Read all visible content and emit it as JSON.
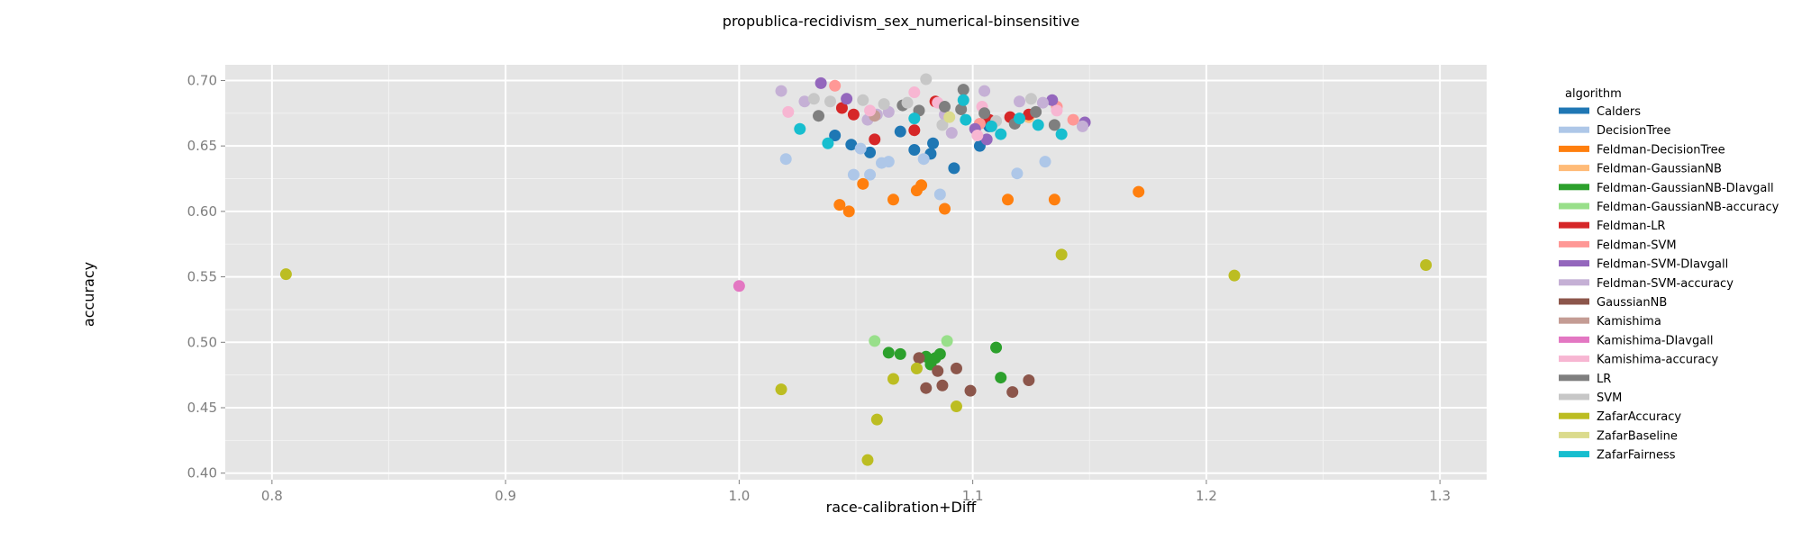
{
  "chart_data": {
    "type": "scatter",
    "title": "propublica-recidivism_sex_numerical-binsensitive",
    "xlabel": "race-calibration+Diff",
    "ylabel": "accuracy",
    "xlim": [
      0.78,
      1.32
    ],
    "ylim": [
      0.395,
      0.712
    ],
    "xticks": [
      0.8,
      0.9,
      1.0,
      1.1,
      1.2,
      1.3
    ],
    "xtick_labels": [
      "0.8",
      "0.9",
      "1.0",
      "1.1",
      "1.2",
      "1.3"
    ],
    "yticks": [
      0.4,
      0.45,
      0.5,
      0.55,
      0.6,
      0.65,
      0.7
    ],
    "ytick_labels": [
      "0.40",
      "0.45",
      "0.50",
      "0.55",
      "0.60",
      "0.65",
      "0.70"
    ],
    "grid": true,
    "background": "#e5e5e5",
    "legend_title": "algorithm",
    "legend_position": "right",
    "series": [
      {
        "name": "Calders",
        "color": "#1f77b4",
        "points": [
          [
            1.041,
            0.658
          ],
          [
            1.048,
            0.651
          ],
          [
            1.056,
            0.645
          ],
          [
            1.069,
            0.661
          ],
          [
            1.075,
            0.647
          ],
          [
            1.082,
            0.644
          ],
          [
            1.083,
            0.652
          ],
          [
            1.092,
            0.633
          ],
          [
            1.103,
            0.65
          ],
          [
            1.107,
            0.665
          ]
        ]
      },
      {
        "name": "DecisionTree",
        "color": "#aec7e8",
        "points": [
          [
            1.02,
            0.64
          ],
          [
            1.049,
            0.628
          ],
          [
            1.052,
            0.648
          ],
          [
            1.056,
            0.628
          ],
          [
            1.061,
            0.637
          ],
          [
            1.064,
            0.638
          ],
          [
            1.079,
            0.64
          ],
          [
            1.086,
            0.613
          ],
          [
            1.119,
            0.629
          ],
          [
            1.131,
            0.638
          ]
        ]
      },
      {
        "name": "Feldman-DecisionTree",
        "color": "#ff7f0e",
        "points": [
          [
            1.043,
            0.605
          ],
          [
            1.047,
            0.6
          ],
          [
            1.053,
            0.621
          ],
          [
            1.066,
            0.609
          ],
          [
            1.076,
            0.616
          ],
          [
            1.078,
            0.62
          ],
          [
            1.088,
            0.602
          ],
          [
            1.115,
            0.609
          ],
          [
            1.135,
            0.609
          ],
          [
            1.171,
            0.615
          ]
        ]
      },
      {
        "name": "Feldman-GaussianNB",
        "color": "#ffbb78",
        "points": [
          [
            1.124,
            0.672
          ]
        ]
      },
      {
        "name": "Feldman-GaussianNB-DIavgall",
        "color": "#2ca02c",
        "points": [
          [
            1.064,
            0.492
          ],
          [
            1.069,
            0.491
          ],
          [
            1.08,
            0.489
          ],
          [
            1.082,
            0.483
          ],
          [
            1.084,
            0.488
          ],
          [
            1.086,
            0.491
          ],
          [
            1.11,
            0.496
          ],
          [
            1.112,
            0.473
          ]
        ]
      },
      {
        "name": "Feldman-GaussianNB-accuracy",
        "color": "#98df8a",
        "points": [
          [
            1.058,
            0.501
          ],
          [
            1.076,
            0.48
          ],
          [
            1.089,
            0.501
          ]
        ]
      },
      {
        "name": "Feldman-LR",
        "color": "#d62728",
        "points": [
          [
            1.044,
            0.679
          ],
          [
            1.049,
            0.674
          ],
          [
            1.058,
            0.655
          ],
          [
            1.075,
            0.662
          ],
          [
            1.084,
            0.684
          ],
          [
            1.107,
            0.67
          ],
          [
            1.116,
            0.672
          ],
          [
            1.124,
            0.674
          ]
        ]
      },
      {
        "name": "Feldman-SVM",
        "color": "#ff9896",
        "points": [
          [
            1.041,
            0.696
          ],
          [
            1.103,
            0.667
          ],
          [
            1.136,
            0.68
          ],
          [
            1.143,
            0.67
          ]
        ]
      },
      {
        "name": "Feldman-SVM-DIavgall",
        "color": "#9467bd",
        "points": [
          [
            1.035,
            0.698
          ],
          [
            1.046,
            0.686
          ],
          [
            1.101,
            0.663
          ],
          [
            1.106,
            0.655
          ],
          [
            1.134,
            0.685
          ],
          [
            1.148,
            0.668
          ]
        ]
      },
      {
        "name": "Feldman-SVM-accuracy",
        "color": "#c5b0d5",
        "points": [
          [
            1.018,
            0.692
          ],
          [
            1.028,
            0.684
          ],
          [
            1.055,
            0.67
          ],
          [
            1.059,
            0.674
          ],
          [
            1.064,
            0.676
          ],
          [
            1.088,
            0.674
          ],
          [
            1.091,
            0.66
          ],
          [
            1.105,
            0.692
          ],
          [
            1.12,
            0.684
          ],
          [
            1.13,
            0.683
          ],
          [
            1.147,
            0.665
          ]
        ]
      },
      {
        "name": "GaussianNB",
        "color": "#8c564b",
        "points": [
          [
            1.077,
            0.488
          ],
          [
            1.08,
            0.465
          ],
          [
            1.085,
            0.478
          ],
          [
            1.087,
            0.467
          ],
          [
            1.093,
            0.48
          ],
          [
            1.099,
            0.463
          ],
          [
            1.117,
            0.462
          ],
          [
            1.124,
            0.471
          ]
        ]
      },
      {
        "name": "Kamishima",
        "color": "#c49c94",
        "points": [
          [
            1.058,
            0.673
          ]
        ]
      },
      {
        "name": "Kamishima-DIavgall",
        "color": "#e377c2",
        "points": [
          [
            1.0,
            0.543
          ]
        ]
      },
      {
        "name": "Kamishima-accuracy",
        "color": "#f7b6d2",
        "points": [
          [
            1.021,
            0.676
          ],
          [
            1.056,
            0.677
          ],
          [
            1.075,
            0.691
          ],
          [
            1.085,
            0.683
          ],
          [
            1.102,
            0.658
          ],
          [
            1.104,
            0.68
          ],
          [
            1.136,
            0.677
          ]
        ]
      },
      {
        "name": "LR",
        "color": "#7f7f7f",
        "points": [
          [
            1.034,
            0.673
          ],
          [
            1.07,
            0.681
          ],
          [
            1.077,
            0.677
          ],
          [
            1.088,
            0.68
          ],
          [
            1.095,
            0.678
          ],
          [
            1.096,
            0.693
          ],
          [
            1.105,
            0.675
          ],
          [
            1.118,
            0.667
          ],
          [
            1.127,
            0.676
          ],
          [
            1.135,
            0.666
          ]
        ]
      },
      {
        "name": "SVM",
        "color": "#c7c7c7",
        "points": [
          [
            1.032,
            0.686
          ],
          [
            1.039,
            0.684
          ],
          [
            1.053,
            0.685
          ],
          [
            1.062,
            0.682
          ],
          [
            1.072,
            0.683
          ],
          [
            1.08,
            0.701
          ],
          [
            1.087,
            0.666
          ],
          [
            1.11,
            0.669
          ],
          [
            1.125,
            0.686
          ]
        ]
      },
      {
        "name": "ZafarAccuracy",
        "color": "#bcbd22",
        "points": [
          [
            0.806,
            0.552
          ],
          [
            1.018,
            0.464
          ],
          [
            1.055,
            0.41
          ],
          [
            1.059,
            0.441
          ],
          [
            1.066,
            0.472
          ],
          [
            1.076,
            0.48
          ],
          [
            1.093,
            0.451
          ],
          [
            1.138,
            0.567
          ],
          [
            1.212,
            0.551
          ],
          [
            1.294,
            0.559
          ]
        ]
      },
      {
        "name": "ZafarBaseline",
        "color": "#dbdb8d",
        "points": [
          [
            1.09,
            0.672
          ]
        ]
      },
      {
        "name": "ZafarFairness",
        "color": "#17becf",
        "points": [
          [
            1.026,
            0.663
          ],
          [
            1.038,
            0.652
          ],
          [
            1.075,
            0.671
          ],
          [
            1.096,
            0.685
          ],
          [
            1.097,
            0.67
          ],
          [
            1.108,
            0.665
          ],
          [
            1.112,
            0.659
          ],
          [
            1.12,
            0.671
          ],
          [
            1.128,
            0.666
          ],
          [
            1.138,
            0.659
          ]
        ]
      }
    ]
  }
}
